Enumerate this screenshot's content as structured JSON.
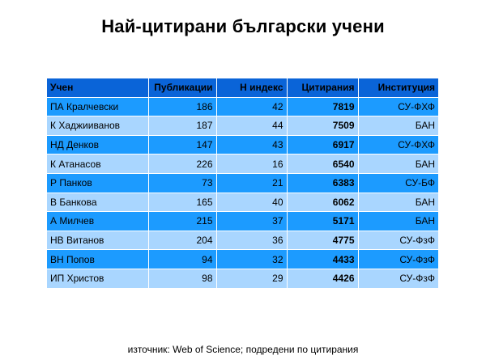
{
  "title": "Най-цитирани български учени",
  "table": {
    "headers": [
      "Учен",
      "Публикации",
      "H индекс",
      "Цитирания",
      "Институция"
    ],
    "rows": [
      [
        "ПА Кралчевски",
        "186",
        "42",
        "7819",
        "СУ-ФХФ"
      ],
      [
        "К Хаджииванов",
        "187",
        "44",
        "7509",
        "БАН"
      ],
      [
        "НД Денков",
        "147",
        "43",
        "6917",
        "СУ-ФХФ"
      ],
      [
        "К Атанасов",
        "226",
        "16",
        "6540",
        "БАН"
      ],
      [
        "Р Панков",
        "73",
        "21",
        "6383",
        "СУ-БФ"
      ],
      [
        "В Банкова",
        "165",
        "40",
        "6062",
        "БАН"
      ],
      [
        "А Милчев",
        "215",
        "37",
        "5171",
        "БАН"
      ],
      [
        "НВ Витанов",
        "204",
        "36",
        "4775",
        "СУ-ФзФ"
      ],
      [
        "ВН Попов",
        "94",
        "32",
        "4433",
        "СУ-ФзФ"
      ],
      [
        "ИП Христов",
        "98",
        "29",
        "4426",
        "СУ-ФзФ"
      ]
    ]
  },
  "source": "източник: Web of Science; подредени по цитирания",
  "colors": {
    "header_bg": "#0a64d8",
    "row_dark": "#1c9bff",
    "row_light": "#a9d6ff"
  }
}
